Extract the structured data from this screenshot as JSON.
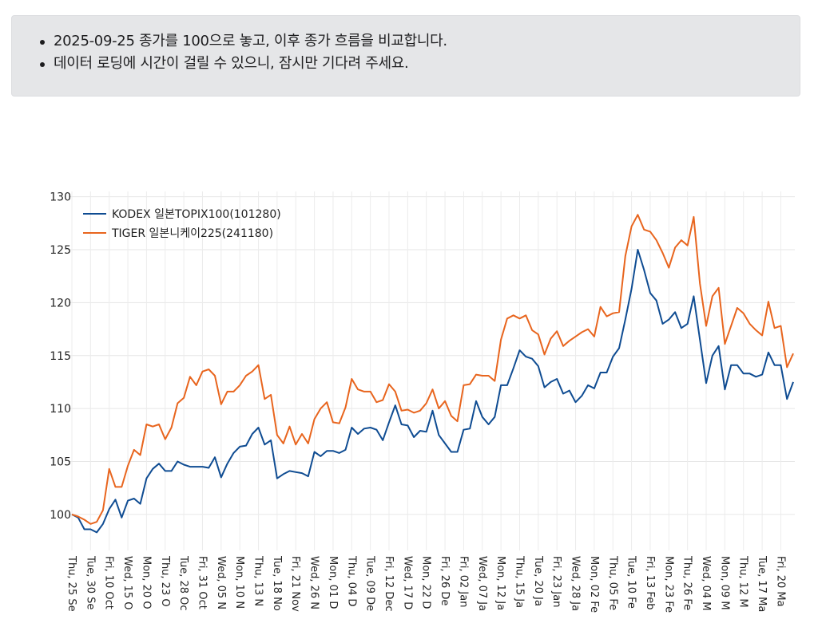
{
  "notice": {
    "items": [
      "2025-09-25 종가를 100으로 놓고, 이후 종가 흐름을 비교합니다.",
      "데이터 로딩에 시간이 걸릴 수 있으니, 잠시만 기다려 주세요."
    ]
  },
  "chart_data": {
    "type": "line",
    "title": "",
    "xlabel": "",
    "ylabel": "",
    "ylim": [
      96.6,
      130.5
    ],
    "yticks": [
      100,
      105,
      110,
      115,
      120,
      125,
      130
    ],
    "grid": true,
    "legend_position": "top-left",
    "x_tick_every": 3,
    "x_tick_labels": [
      "Thu, 25 Se",
      "Tue, 30 Se",
      "Fri, 10 Oct",
      "Wed, 15 O",
      "Mon, 20 O",
      "Thu, 23 O",
      "Tue, 28 Oc",
      "Fri, 31 Oct",
      "Wed, 05 N",
      "Mon, 10 N",
      "Thu, 13 N",
      "Tue, 18 No",
      "Fri, 21 Nov",
      "Wed, 26 N",
      "Mon, 01 D",
      "Thu, 04 D",
      "Tue, 09 De",
      "Fri, 12 Dec",
      "Wed, 17 D",
      "Mon, 22 D",
      "Fri, 26 De",
      "Fri, 02 Jan",
      "Wed, 07 Ja",
      "Mon, 12 Ja",
      "Thu, 15 Ja",
      "Tue, 20 Ja",
      "Fri, 23 Jan",
      "Wed, 28 Ja",
      "Mon, 02 Fe",
      "Thu, 05 Fe",
      "Tue, 10 Fe",
      "Fri, 13 Feb",
      "Mon, 23 Fe",
      "Thu, 26 Fe",
      "Wed, 04 M",
      "Mon, 09 M",
      "Thu, 12 M",
      "Tue, 17 Ma",
      "Fri, 20 Ma"
    ],
    "series": [
      {
        "name": "KODEX 일본TOPIX100(101280)",
        "color": "#0f4c92",
        "values": [
          100,
          99.7,
          98.6,
          98.6,
          98.3,
          99.1,
          100.5,
          101.4,
          99.7,
          101.3,
          101.5,
          101,
          103.4,
          104.3,
          104.8,
          104.1,
          104.1,
          105,
          104.7,
          104.5,
          104.5,
          104.5,
          104.4,
          105.4,
          103.5,
          104.8,
          105.8,
          106.4,
          106.5,
          107.6,
          108.2,
          106.6,
          107,
          103.4,
          103.8,
          104.1,
          104,
          103.9,
          103.6,
          105.9,
          105.5,
          106,
          106,
          105.8,
          106.1,
          108.2,
          107.6,
          108.1,
          108.2,
          108,
          107,
          108.7,
          110.3,
          108.5,
          108.4,
          107.3,
          107.9,
          107.8,
          109.8,
          107.5,
          106.7,
          105.9,
          105.9,
          108,
          108.1,
          110.7,
          109.2,
          108.5,
          109.2,
          112.2,
          112.2,
          113.8,
          115.5,
          114.9,
          114.7,
          114,
          112,
          112.5,
          112.8,
          111.4,
          111.7,
          110.6,
          111.2,
          112.2,
          111.9,
          113.4,
          113.4,
          114.9,
          115.7,
          118.4,
          121.3,
          125,
          123.1,
          120.9,
          120.2,
          118,
          118.4,
          119.1,
          117.6,
          118,
          120.6,
          116.5,
          112.4,
          115,
          115.9,
          111.8,
          114.1,
          114.1,
          113.3,
          113.3,
          113,
          113.2,
          115.3,
          114.1,
          114.1,
          110.9,
          112.5
        ]
      },
      {
        "name": "TIGER 일본니케이225(241180)",
        "color": "#e8651e",
        "values": [
          100,
          99.8,
          99.5,
          99.1,
          99.3,
          100.4,
          104.3,
          102.6,
          102.6,
          104.6,
          106.1,
          105.6,
          108.5,
          108.3,
          108.5,
          107.1,
          108.2,
          110.5,
          111,
          113,
          112.2,
          113.5,
          113.7,
          113.1,
          110.4,
          111.6,
          111.6,
          112.2,
          113.1,
          113.5,
          114.1,
          110.9,
          111.3,
          107.5,
          106.7,
          108.3,
          106.6,
          107.6,
          106.7,
          109,
          110,
          110.6,
          108.7,
          108.6,
          110.1,
          112.8,
          111.8,
          111.6,
          111.6,
          110.6,
          110.8,
          112.3,
          111.6,
          109.8,
          109.9,
          109.6,
          109.8,
          110.5,
          111.8,
          110,
          110.7,
          109.3,
          108.8,
          112.2,
          112.3,
          113.2,
          113.1,
          113.1,
          112.6,
          116.5,
          118.5,
          118.8,
          118.5,
          118.8,
          117.4,
          117,
          115.1,
          116.6,
          117.3,
          115.9,
          116.4,
          116.8,
          117.2,
          117.5,
          116.8,
          119.6,
          118.7,
          119,
          119.1,
          124.4,
          127.2,
          128.3,
          126.9,
          126.7,
          125.9,
          124.7,
          123.3,
          125.2,
          125.9,
          125.4,
          128.1,
          121.8,
          117.8,
          120.6,
          121.4,
          116.1,
          117.8,
          119.5,
          119,
          118,
          117.4,
          116.9,
          120.1,
          117.6,
          117.8,
          113.9,
          115.2
        ]
      }
    ]
  }
}
